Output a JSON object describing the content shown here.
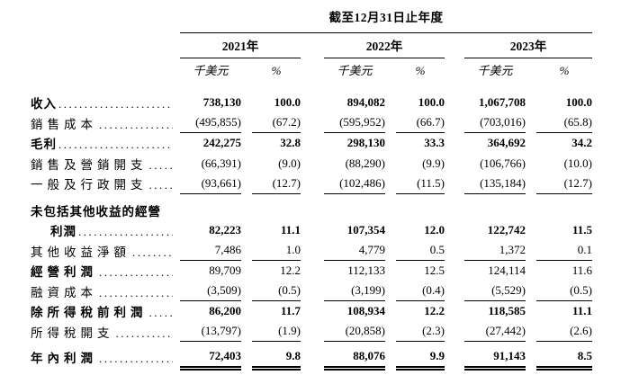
{
  "table": {
    "title": "截至12月31日止年度",
    "years": [
      "2021年",
      "2022年",
      "2023年"
    ],
    "year_keys": [
      "2021",
      "2022",
      "2023"
    ],
    "col_unit": "千美元",
    "col_pct": "%",
    "rows": [
      {
        "label": "收入",
        "bold": true,
        "tight": true,
        "leader": true,
        "values_bold": true,
        "values": [
          "738,130",
          "100.0",
          "894,082",
          "100.0",
          "1,067,708",
          "100.0"
        ],
        "rule": "none"
      },
      {
        "label": "銷售成本",
        "bold": false,
        "leader": true,
        "values": [
          "(495,855)",
          "(67.2)",
          "(595,952)",
          "(66.7)",
          "(703,016)",
          "(65.8)"
        ],
        "rule": "single"
      },
      {
        "label": "毛利",
        "bold": true,
        "tight": true,
        "leader": true,
        "values_bold": true,
        "values": [
          "242,275",
          "32.8",
          "298,130",
          "33.3",
          "364,692",
          "34.2"
        ],
        "rule": "none"
      },
      {
        "label": "銷售及營銷開支",
        "bold": false,
        "leader": true,
        "values": [
          "(66,391)",
          "(9.0)",
          "(88,290)",
          "(9.9)",
          "(106,766)",
          "(10.0)"
        ],
        "rule": "none"
      },
      {
        "label": "一般及行政開支",
        "bold": false,
        "leader": true,
        "values": [
          "(93,661)",
          "(12.7)",
          "(102,486)",
          "(11.5)",
          "(135,184)",
          "(12.7)"
        ],
        "rule": "single"
      },
      {
        "label": "未包括其他收益的經營",
        "bold": true,
        "tight": true,
        "leader": false,
        "space": "a",
        "values": null,
        "rule": "none"
      },
      {
        "label": "利潤",
        "bold": true,
        "tight": true,
        "indent": true,
        "leader": true,
        "values_bold": true,
        "values": [
          "82,223",
          "11.1",
          "107,354",
          "12.0",
          "122,742",
          "11.5"
        ],
        "rule": "none"
      },
      {
        "label": "其他收益淨額",
        "bold": false,
        "leader": true,
        "values": [
          "7,486",
          "1.0",
          "4,779",
          "0.5",
          "1,372",
          "0.1"
        ],
        "rule": "single"
      },
      {
        "label": "經營利潤",
        "bold": true,
        "leader": true,
        "values": [
          "89,709",
          "12.2",
          "112,133",
          "12.5",
          "124,114",
          "11.6"
        ],
        "rule": "none"
      },
      {
        "label": "融資成本",
        "bold": false,
        "leader": true,
        "values": [
          "(3,509)",
          "(0.5)",
          "(3,199)",
          "(0.4)",
          "(5,529)",
          "(0.5)"
        ],
        "rule": "single"
      },
      {
        "label": "除所得稅前利潤",
        "bold": true,
        "leader": true,
        "values_bold": true,
        "values": [
          "86,200",
          "11.7",
          "108,934",
          "12.2",
          "118,585",
          "11.1"
        ],
        "rule": "none"
      },
      {
        "label": "所得稅開支",
        "bold": false,
        "leader": true,
        "values": [
          "(13,797)",
          "(1.9)",
          "(20,858)",
          "(2.3)",
          "(27,442)",
          "(2.6)"
        ],
        "rule": "single"
      },
      {
        "label": "年內利潤",
        "bold": true,
        "leader": true,
        "values_bold": true,
        "space": "b",
        "values": [
          "72,403",
          "9.8",
          "88,076",
          "9.9",
          "91,143",
          "8.5"
        ],
        "rule": "double"
      }
    ]
  }
}
